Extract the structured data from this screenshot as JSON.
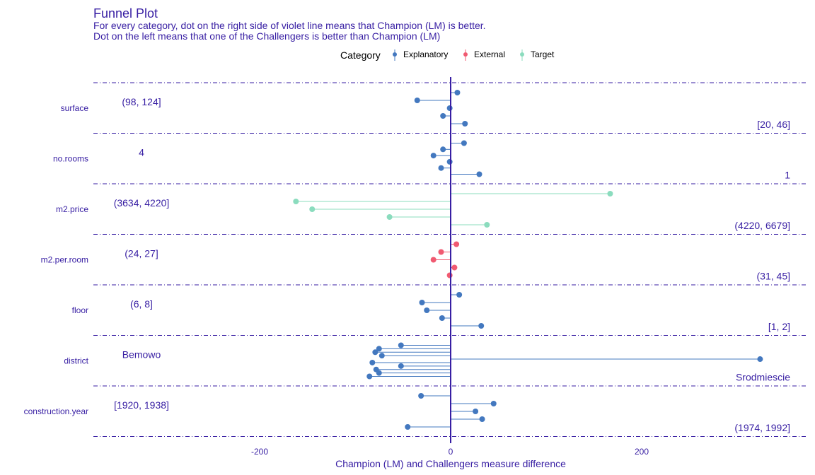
{
  "chart_data": {
    "type": "lollipop",
    "title": "Funnel Plot",
    "subtitle_lines": [
      "For every category, dot on the right side of violet line means that Champion (LM) is better.",
      "Dot on the left means that one of the Challengers is better than Champion (LM)"
    ],
    "xlabel": "Champion (LM) and Challengers measure difference",
    "ylabel": "",
    "xlim": [
      -378,
      378
    ],
    "xticks": [
      -200,
      0,
      200
    ],
    "xtick_labels": [
      "-200",
      "0",
      "200"
    ],
    "legend": {
      "title": "Category",
      "position": "top",
      "entries": [
        {
          "name": "Explanatory",
          "color": "#4378bf"
        },
        {
          "name": "External",
          "color": "#f05a71"
        },
        {
          "name": "Target",
          "color": "#8bdcbe"
        }
      ]
    },
    "reference_line": {
      "x": 0,
      "color": "#371ea3"
    },
    "groups": [
      {
        "variable": "surface",
        "category": "Explanatory",
        "values": [
          7,
          -35,
          -1,
          -8,
          15
        ],
        "annotation_left": "(98, 124]",
        "annotation_right": "[20, 46]"
      },
      {
        "variable": "no.rooms",
        "category": "Explanatory",
        "values": [
          14,
          -8,
          -18,
          -1,
          -10,
          30
        ],
        "annotation_left": "4",
        "annotation_right": "1"
      },
      {
        "variable": "m2.price",
        "category": "Target",
        "values": [
          167,
          -162,
          -145,
          -64,
          38
        ],
        "annotation_left": "(3634, 4220]",
        "annotation_right": "(4220, 6679]"
      },
      {
        "variable": "m2.per.room",
        "category": "External",
        "values": [
          6,
          -10,
          -18,
          4,
          -1
        ],
        "annotation_left": "(24, 27]",
        "annotation_right": "(31, 45]"
      },
      {
        "variable": "floor",
        "category": "Explanatory",
        "values": [
          9,
          -30,
          -25,
          -9,
          32
        ],
        "annotation_left": "(6, 8]",
        "annotation_right": "[1, 2]"
      },
      {
        "variable": "district",
        "category": "Explanatory",
        "values": [
          -52,
          -75,
          -79,
          -72,
          324,
          -82,
          -52,
          -78,
          -75,
          -85
        ],
        "annotation_left": "Bemowo",
        "annotation_right": "Srodmiescie"
      },
      {
        "variable": "construction.year",
        "category": "Explanatory",
        "values": [
          -31,
          45,
          26,
          33,
          -45
        ],
        "annotation_left": "[1920, 1938]",
        "annotation_right": "(1974, 1992]"
      }
    ]
  }
}
